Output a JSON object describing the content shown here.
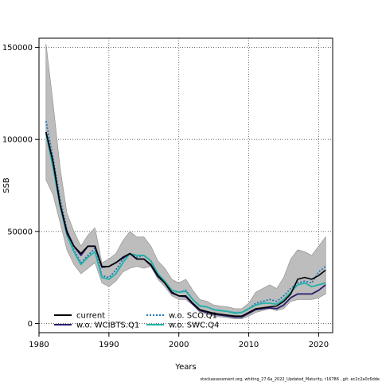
{
  "chart_data": {
    "type": "line",
    "xlabel": "Years",
    "ylabel": "SSB",
    "xlim": [
      1980,
      2022
    ],
    "ylim": [
      -5000,
      155000
    ],
    "x_ticks": [
      1980,
      1990,
      2000,
      2010,
      2020
    ],
    "y_ticks": [
      0,
      50000,
      100000,
      150000
    ],
    "grid": true,
    "legend_position": "bottom-left",
    "footer": "stockassessment.org, whiting_27.6a_2022_Updated_Maturity, r16786 , git: ec2c2a0c6dde",
    "x": [
      1981,
      1982,
      1983,
      1984,
      1985,
      1986,
      1987,
      1988,
      1989,
      1990,
      1991,
      1992,
      1993,
      1994,
      1995,
      1996,
      1997,
      1998,
      1999,
      2000,
      2001,
      2002,
      2003,
      2004,
      2005,
      2006,
      2007,
      2008,
      2009,
      2010,
      2011,
      2012,
      2013,
      2014,
      2015,
      2016,
      2017,
      2018,
      2019,
      2020,
      2021
    ],
    "confidence_band": {
      "upper": [
        152000,
        120000,
        85000,
        60000,
        50000,
        42000,
        48000,
        52000,
        33000,
        35000,
        38000,
        45000,
        50000,
        47000,
        47000,
        42000,
        34000,
        30000,
        24000,
        22000,
        24000,
        18000,
        13000,
        12000,
        10000,
        9500,
        9000,
        8000,
        8000,
        11000,
        17000,
        19000,
        21000,
        19000,
        25000,
        35000,
        40000,
        39000,
        37000,
        42000,
        47000
      ],
      "lower": [
        78000,
        70000,
        55000,
        40000,
        32000,
        27000,
        30000,
        33000,
        22000,
        20000,
        23000,
        28000,
        30000,
        31000,
        30000,
        31000,
        24000,
        20000,
        15000,
        13000,
        13000,
        10000,
        6000,
        5000,
        4000,
        3500,
        3000,
        2500,
        2500,
        4000,
        6000,
        7000,
        8000,
        7000,
        8000,
        12000,
        13000,
        13000,
        13000,
        14000,
        16000
      ]
    },
    "series": [
      {
        "name": "current",
        "color": "#000000",
        "dash": "solid",
        "values": [
          104000,
          88000,
          65000,
          50000,
          42000,
          38000,
          42000,
          42000,
          31000,
          31000,
          33000,
          36000,
          38000,
          35000,
          35000,
          32000,
          26000,
          22000,
          17000,
          15000,
          15000,
          11000,
          7500,
          6500,
          5500,
          5000,
          4500,
          4000,
          4000,
          6000,
          8000,
          8500,
          9000,
          9500,
          12000,
          16000,
          24000,
          25000,
          24000,
          26000,
          29000
        ]
      },
      {
        "name": "w.o. WCIBTS.Q1",
        "color": "#2d1b6f",
        "dash": "solid",
        "values": [
          104000,
          88000,
          65000,
          49000,
          42000,
          37000,
          42000,
          42000,
          30500,
          31000,
          33000,
          35500,
          38000,
          35000,
          35000,
          31500,
          25500,
          22000,
          16500,
          15000,
          14500,
          10500,
          7000,
          6000,
          5000,
          4500,
          4000,
          3500,
          3500,
          5500,
          7500,
          8000,
          8500,
          8000,
          10000,
          14000,
          16000,
          16000,
          16000,
          18000,
          21000
        ]
      },
      {
        "name": "w.o. SCO.Q1",
        "color": "#1f77b4",
        "dash": "dotted",
        "values": [
          110000,
          90000,
          68000,
          51000,
          40000,
          33000,
          37000,
          41000,
          26000,
          25000,
          29000,
          35000,
          38000,
          36000,
          37000,
          34000,
          27000,
          22000,
          18000,
          17000,
          18000,
          13000,
          9500,
          9000,
          7500,
          7000,
          6500,
          6000,
          6000,
          8000,
          11000,
          12000,
          13000,
          12000,
          15000,
          19000,
          22000,
          23000,
          22000,
          28000,
          31000
        ]
      },
      {
        "name": "w.o. SWC.Q4",
        "color": "#20b2aa",
        "dash": "solid",
        "values": [
          103000,
          85000,
          64000,
          48000,
          39000,
          32000,
          36000,
          39000,
          25000,
          24000,
          27000,
          33000,
          38000,
          37000,
          37000,
          34000,
          27000,
          23000,
          18000,
          17000,
          17500,
          13000,
          9500,
          9000,
          7500,
          7000,
          6500,
          5500,
          6000,
          8000,
          10000,
          11000,
          11000,
          10500,
          13000,
          17000,
          21000,
          22000,
          20000,
          21000,
          22000
        ]
      }
    ]
  }
}
